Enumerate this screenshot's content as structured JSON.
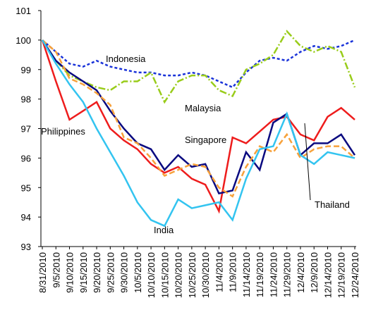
{
  "chart_data": {
    "type": "line",
    "categories": [
      "8/31/2010",
      "9/5/2010",
      "9/10/2010",
      "9/15/2010",
      "9/20/2010",
      "9/25/2010",
      "9/30/2010",
      "10/5/2010",
      "10/10/2010",
      "10/15/2010",
      "10/20/2010",
      "10/25/2010",
      "10/30/2010",
      "11/4/2010",
      "11/9/2010",
      "11/14/2010",
      "11/19/2010",
      "11/24/2010",
      "11/29/2010",
      "12/4/2010",
      "12/9/2010",
      "12/14/2010",
      "12/19/2010",
      "12/24/2010"
    ],
    "ylim": [
      93,
      101
    ],
    "yticks": [
      93,
      94,
      95,
      96,
      97,
      98,
      99,
      100,
      101
    ],
    "series": [
      {
        "name": "Indonesia",
        "color": "#1a33d9",
        "dash": "4,3",
        "values": [
          100,
          99.6,
          99.2,
          99.1,
          99.3,
          99.1,
          99.0,
          98.9,
          98.9,
          98.8,
          98.8,
          98.9,
          98.8,
          98.6,
          98.4,
          98.9,
          99.3,
          99.4,
          99.3,
          99.6,
          99.8,
          99.7,
          99.8,
          100.0
        ]
      },
      {
        "name": "Malaysia",
        "color": "#99cc1a",
        "dash": "10,3,2,3",
        "values": [
          100,
          99.3,
          98.8,
          98.6,
          98.4,
          98.3,
          98.6,
          98.6,
          98.9,
          97.9,
          98.6,
          98.8,
          98.8,
          98.3,
          98.1,
          99.0,
          99.2,
          99.5,
          100.3,
          99.8,
          99.6,
          99.8,
          99.6,
          98.4
        ]
      },
      {
        "name": "Philippines",
        "color": "#ee1c1c",
        "dash": "",
        "values": [
          100,
          98.6,
          97.3,
          97.6,
          97.9,
          97.0,
          96.6,
          96.3,
          95.8,
          95.5,
          95.7,
          95.3,
          95.1,
          94.2,
          96.7,
          96.5,
          96.9,
          97.3,
          97.4,
          96.8,
          96.6,
          97.4,
          97.7,
          97.3
        ]
      },
      {
        "name": "Singapore",
        "color": "#0a0a80",
        "dash": "",
        "values": [
          100,
          99.3,
          98.9,
          98.6,
          98.3,
          97.6,
          97.0,
          96.5,
          96.3,
          95.6,
          96.1,
          95.7,
          95.8,
          94.8,
          94.9,
          96.2,
          95.6,
          97.2,
          97.5,
          96.1,
          96.5,
          96.5,
          96.8,
          96.1
        ]
      },
      {
        "name": "Thailand",
        "color": "#f7a13a",
        "dash": "8,4",
        "values": [
          100,
          99.6,
          98.7,
          98.5,
          98.2,
          97.8,
          96.7,
          96.5,
          96.0,
          95.4,
          95.6,
          95.8,
          95.7,
          95.0,
          94.7,
          95.7,
          96.4,
          96.2,
          96.8,
          96.0,
          96.3,
          96.4,
          96.4,
          96.0
        ]
      },
      {
        "name": "India",
        "color": "#33c4f0",
        "dash": "",
        "values": [
          100,
          99.2,
          98.5,
          97.9,
          97.0,
          96.2,
          95.4,
          94.5,
          93.9,
          93.7,
          94.6,
          94.3,
          94.4,
          94.5,
          93.9,
          95.3,
          96.3,
          96.4,
          97.5,
          96.1,
          95.8,
          96.2,
          96.1,
          96.0
        ]
      }
    ]
  }
}
